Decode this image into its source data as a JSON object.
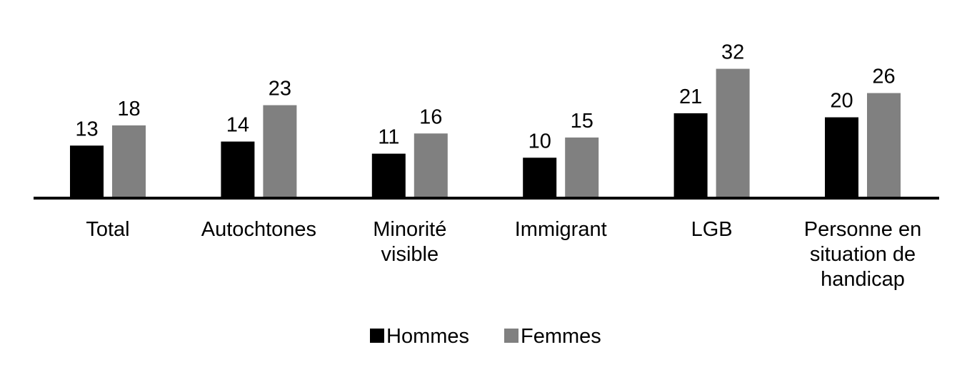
{
  "chart_data": {
    "type": "bar",
    "title": "",
    "xlabel": "",
    "ylabel": "",
    "categories": [
      [
        "Total"
      ],
      [
        "Autochtones"
      ],
      [
        "Minorité",
        "visible"
      ],
      [
        "Immigrant"
      ],
      [
        "LGB"
      ],
      [
        "Personne en",
        "situation de",
        "handicap"
      ]
    ],
    "series": [
      {
        "name": "Hommes",
        "color": "#000000",
        "values": [
          13,
          14,
          11,
          10,
          21,
          20
        ]
      },
      {
        "name": "Femmes",
        "color": "#808080",
        "values": [
          18,
          23,
          16,
          15,
          32,
          26
        ]
      }
    ],
    "ylim": [
      0,
      35
    ],
    "grid": false,
    "axis_line_color": "#000000",
    "legend_placement": "bottom-center",
    "data_labels": true
  }
}
